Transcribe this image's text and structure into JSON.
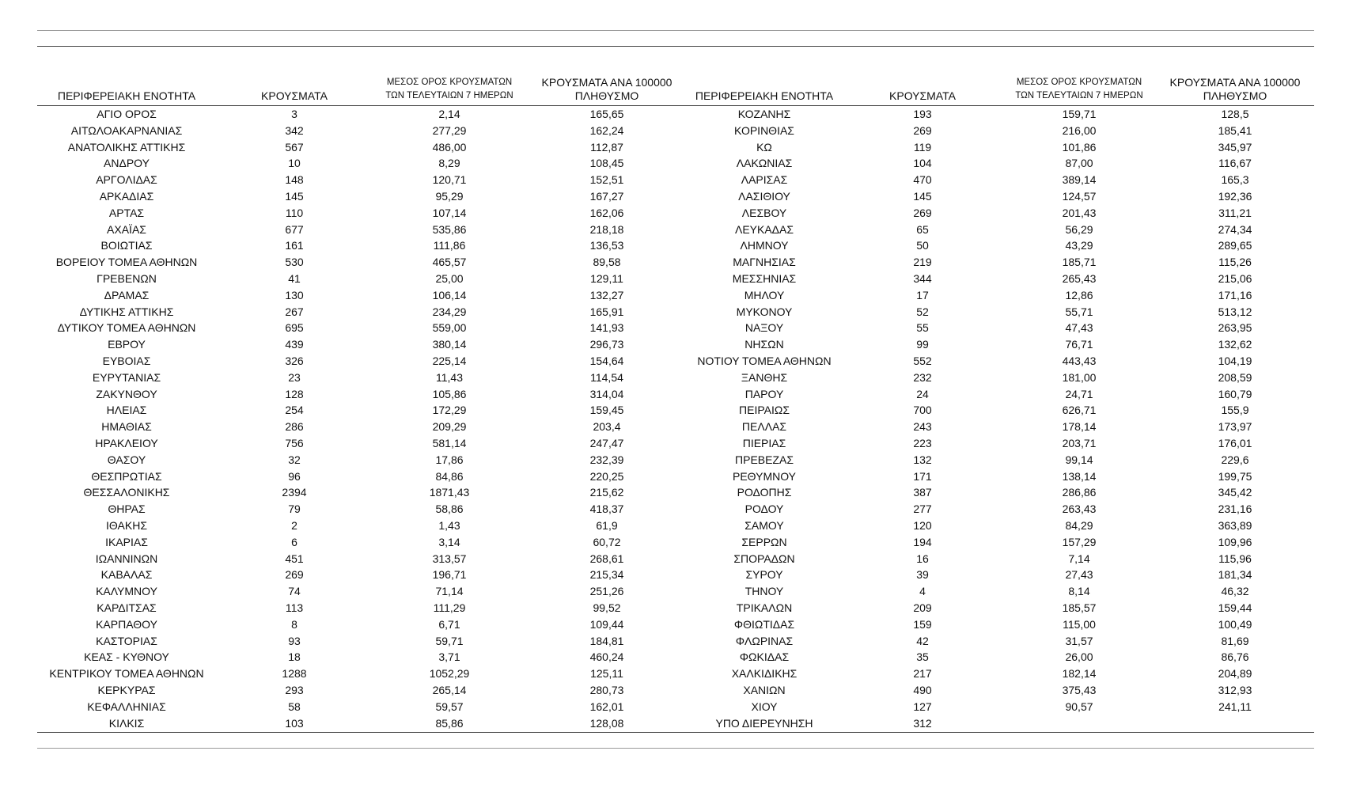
{
  "table": {
    "columns": [
      [
        "ΠΕΡΙΦΕΡΕΙΑΚΗ ΕΝΟΤΗΤΑ"
      ],
      [
        "ΚΡΟΥΣΜΑΤΑ"
      ],
      [
        "ΜΕΣΟΣ ΟΡΟΣ ΚΡΟΥΣΜΑΤΩΝ",
        "ΤΩΝ ΤΕΛΕΥΤΑΙΩΝ 7 ΗΜΕΡΩΝ"
      ],
      [
        "ΚΡΟΥΣΜΑΤΑ ΑΝΑ 100000",
        "ΠΛΗΘΥΣΜΟ"
      ],
      [
        "ΠΕΡΙΦΕΡΕΙΑΚΗ ΕΝΟΤΗΤΑ"
      ],
      [
        "ΚΡΟΥΣΜΑΤΑ"
      ],
      [
        "ΜΕΣΟΣ ΟΡΟΣ ΚΡΟΥΣΜΑΤΩΝ",
        "ΤΩΝ ΤΕΛΕΥΤΑΙΩΝ 7 ΗΜΕΡΩΝ"
      ],
      [
        "ΚΡΟΥΣΜΑΤΑ ΑΝΑ 100000",
        "ΠΛΗΘΥΣΜΟ"
      ]
    ],
    "rows": [
      [
        "ΑΓΙΟ ΟΡΟΣ",
        "3",
        "2,14",
        "165,65",
        "ΚΟΖΑΝΗΣ",
        "193",
        "159,71",
        "128,5"
      ],
      [
        "ΑΙΤΩΛΟΑΚΑΡΝΑΝΙΑΣ",
        "342",
        "277,29",
        "162,24",
        "ΚΟΡΙΝΘΙΑΣ",
        "269",
        "216,00",
        "185,41"
      ],
      [
        "ΑΝΑΤΟΛΙΚΗΣ ΑΤΤΙΚΗΣ",
        "567",
        "486,00",
        "112,87",
        "ΚΩ",
        "119",
        "101,86",
        "345,97"
      ],
      [
        "ΑΝΔΡΟΥ",
        "10",
        "8,29",
        "108,45",
        "ΛΑΚΩΝΙΑΣ",
        "104",
        "87,00",
        "116,67"
      ],
      [
        "ΑΡΓΟΛΙΔΑΣ",
        "148",
        "120,71",
        "152,51",
        "ΛΑΡΙΣΑΣ",
        "470",
        "389,14",
        "165,3"
      ],
      [
        "ΑΡΚΑΔΙΑΣ",
        "145",
        "95,29",
        "167,27",
        "ΛΑΣΙΘΙΟΥ",
        "145",
        "124,57",
        "192,36"
      ],
      [
        "ΑΡΤΑΣ",
        "110",
        "107,14",
        "162,06",
        "ΛΕΣΒΟΥ",
        "269",
        "201,43",
        "311,21"
      ],
      [
        "ΑΧΑΪΑΣ",
        "677",
        "535,86",
        "218,18",
        "ΛΕΥΚΑΔΑΣ",
        "65",
        "56,29",
        "274,34"
      ],
      [
        "ΒΟΙΩΤΙΑΣ",
        "161",
        "111,86",
        "136,53",
        "ΛΗΜΝΟΥ",
        "50",
        "43,29",
        "289,65"
      ],
      [
        "ΒΟΡΕΙΟΥ ΤΟΜΕΑ ΑΘΗΝΩΝ",
        "530",
        "465,57",
        "89,58",
        "ΜΑΓΝΗΣΙΑΣ",
        "219",
        "185,71",
        "115,26"
      ],
      [
        "ΓΡΕΒΕΝΩΝ",
        "41",
        "25,00",
        "129,11",
        "ΜΕΣΣΗΝΙΑΣ",
        "344",
        "265,43",
        "215,06"
      ],
      [
        "ΔΡΑΜΑΣ",
        "130",
        "106,14",
        "132,27",
        "ΜΗΛΟΥ",
        "17",
        "12,86",
        "171,16"
      ],
      [
        "ΔΥΤΙΚΗΣ ΑΤΤΙΚΗΣ",
        "267",
        "234,29",
        "165,91",
        "ΜΥΚΟΝΟΥ",
        "52",
        "55,71",
        "513,12"
      ],
      [
        "ΔΥΤΙΚΟΥ ΤΟΜΕΑ ΑΘΗΝΩΝ",
        "695",
        "559,00",
        "141,93",
        "ΝΑΞΟΥ",
        "55",
        "47,43",
        "263,95"
      ],
      [
        "ΕΒΡΟΥ",
        "439",
        "380,14",
        "296,73",
        "ΝΗΣΩΝ",
        "99",
        "76,71",
        "132,62"
      ],
      [
        "ΕΥΒΟΙΑΣ",
        "326",
        "225,14",
        "154,64",
        "ΝΟΤΙΟΥ ΤΟΜΕΑ ΑΘΗΝΩΝ",
        "552",
        "443,43",
        "104,19"
      ],
      [
        "ΕΥΡΥΤΑΝΙΑΣ",
        "23",
        "11,43",
        "114,54",
        "ΞΑΝΘΗΣ",
        "232",
        "181,00",
        "208,59"
      ],
      [
        "ΖΑΚΥΝΘΟΥ",
        "128",
        "105,86",
        "314,04",
        "ΠΑΡΟΥ",
        "24",
        "24,71",
        "160,79"
      ],
      [
        "ΗΛΕΙΑΣ",
        "254",
        "172,29",
        "159,45",
        "ΠΕΙΡΑΙΩΣ",
        "700",
        "626,71",
        "155,9"
      ],
      [
        "ΗΜΑΘΙΑΣ",
        "286",
        "209,29",
        "203,4",
        "ΠΕΛΛΑΣ",
        "243",
        "178,14",
        "173,97"
      ],
      [
        "ΗΡΑΚΛΕΙΟΥ",
        "756",
        "581,14",
        "247,47",
        "ΠΙΕΡΙΑΣ",
        "223",
        "203,71",
        "176,01"
      ],
      [
        "ΘΑΣΟΥ",
        "32",
        "17,86",
        "232,39",
        "ΠΡΕΒΕΖΑΣ",
        "132",
        "99,14",
        "229,6"
      ],
      [
        "ΘΕΣΠΡΩΤΙΑΣ",
        "96",
        "84,86",
        "220,25",
        "ΡΕΘΥΜΝΟΥ",
        "171",
        "138,14",
        "199,75"
      ],
      [
        "ΘΕΣΣΑΛΟΝΙΚΗΣ",
        "2394",
        "1871,43",
        "215,62",
        "ΡΟΔΟΠΗΣ",
        "387",
        "286,86",
        "345,42"
      ],
      [
        "ΘΗΡΑΣ",
        "79",
        "58,86",
        "418,37",
        "ΡΟΔΟΥ",
        "277",
        "263,43",
        "231,16"
      ],
      [
        "ΙΘΑΚΗΣ",
        "2",
        "1,43",
        "61,9",
        "ΣΑΜΟΥ",
        "120",
        "84,29",
        "363,89"
      ],
      [
        "ΙΚΑΡΙΑΣ",
        "6",
        "3,14",
        "60,72",
        "ΣΕΡΡΩΝ",
        "194",
        "157,29",
        "109,96"
      ],
      [
        "ΙΩΑΝΝΙΝΩΝ",
        "451",
        "313,57",
        "268,61",
        "ΣΠΟΡΑΔΩΝ",
        "16",
        "7,14",
        "115,96"
      ],
      [
        "ΚΑΒΑΛΑΣ",
        "269",
        "196,71",
        "215,34",
        "ΣΥΡΟΥ",
        "39",
        "27,43",
        "181,34"
      ],
      [
        "ΚΑΛΥΜΝΟΥ",
        "74",
        "71,14",
        "251,26",
        "ΤΗΝΟΥ",
        "4",
        "8,14",
        "46,32"
      ],
      [
        "ΚΑΡΔΙΤΣΑΣ",
        "113",
        "111,29",
        "99,52",
        "ΤΡΙΚΑΛΩΝ",
        "209",
        "185,57",
        "159,44"
      ],
      [
        "ΚΑΡΠΑΘΟΥ",
        "8",
        "6,71",
        "109,44",
        "ΦΘΙΩΤΙΔΑΣ",
        "159",
        "115,00",
        "100,49"
      ],
      [
        "ΚΑΣΤΟΡΙΑΣ",
        "93",
        "59,71",
        "184,81",
        "ΦΛΩΡΙΝΑΣ",
        "42",
        "31,57",
        "81,69"
      ],
      [
        "ΚΕΑΣ - ΚΥΘΝΟΥ",
        "18",
        "3,71",
        "460,24",
        "ΦΩΚΙΔΑΣ",
        "35",
        "26,00",
        "86,76"
      ],
      [
        "ΚΕΝΤΡΙΚΟΥ ΤΟΜΕΑ ΑΘΗΝΩΝ",
        "1288",
        "1052,29",
        "125,11",
        "ΧΑΛΚΙΔΙΚΗΣ",
        "217",
        "182,14",
        "204,89"
      ],
      [
        "ΚΕΡΚΥΡΑΣ",
        "293",
        "265,14",
        "280,73",
        "ΧΑΝΙΩΝ",
        "490",
        "375,43",
        "312,93"
      ],
      [
        "ΚΕΦΑΛΛΗΝΙΑΣ",
        "58",
        "59,57",
        "162,01",
        "ΧΙΟΥ",
        "127",
        "90,57",
        "241,11"
      ],
      [
        "ΚΙΛΚΙΣ",
        "103",
        "85,86",
        "128,08",
        "ΥΠΟ ΔΙΕΡΕΥΝΗΣΗ",
        "312"
      ]
    ]
  }
}
